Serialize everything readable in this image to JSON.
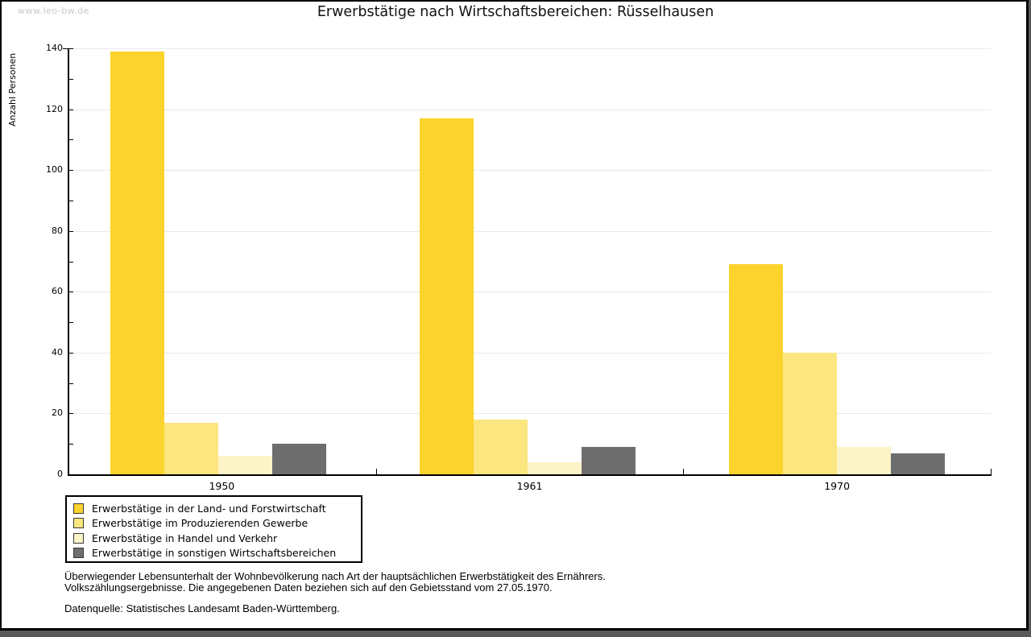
{
  "watermark": "www.leo-bw.de",
  "title": "Erwerbstätige nach Wirtschaftsbereichen: Rüsselhausen",
  "chart_data": {
    "type": "bar",
    "title": "Erwerbstätige nach Wirtschaftsbereichen: Rüsselhausen",
    "xlabel": "",
    "ylabel": "Anzahl Personen",
    "ylim": [
      0,
      140
    ],
    "yticks": [
      0,
      20,
      40,
      60,
      80,
      100,
      120,
      140
    ],
    "ytick_minor_step": 10,
    "grid": true,
    "legend_position": "bottom-left",
    "categories": [
      "1950",
      "1961",
      "1970"
    ],
    "series": [
      {
        "name": "Erwerbstätige in der Land- und Forstwirtschaft",
        "color": "#FBD32C",
        "values": [
          139,
          117,
          69
        ]
      },
      {
        "name": "Erwerbstätige im Produzierenden Gewerbe",
        "color": "#FBE67F",
        "values": [
          17,
          18,
          40
        ]
      },
      {
        "name": "Erwerbstätige in Handel und Verkehr",
        "color": "#FCF3C7",
        "values": [
          6,
          4,
          9
        ]
      },
      {
        "name": "Erwerbstätige in sonstigen Wirtschaftsbereichen",
        "color": "#6E6E6E",
        "values": [
          10,
          9,
          7
        ]
      }
    ]
  },
  "footnotes": {
    "line1": "Überwiegender Lebensunterhalt der Wohnbevölkerung nach Art der hauptsächlichen Erwerbstätigkeit des Ernährers.",
    "line2": "Volkszählungsergebnisse. Die angegebenen Daten beziehen sich auf den Gebietsstand vom 27.05.1970.",
    "source": "Datenquelle: Statistisches Landesamt Baden-Württemberg."
  }
}
